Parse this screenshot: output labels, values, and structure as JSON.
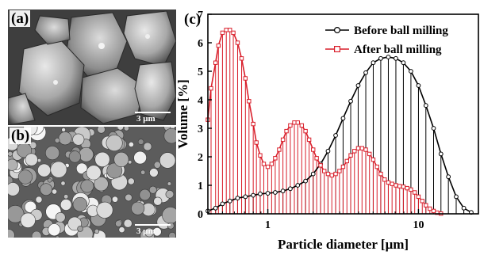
{
  "panels": {
    "a": {
      "label": "(a)",
      "scale_bar": "3 μm"
    },
    "b": {
      "label": "(b)",
      "scale_bar": "3 μm"
    }
  },
  "chart_data": {
    "type": "line",
    "panel_label": "(c)",
    "xlabel": "Particle diameter [μm]",
    "ylabel": "Volume [%]",
    "xscale": "log",
    "xlim": [
      0.4,
      25
    ],
    "ylim": [
      0,
      7
    ],
    "xticks": [
      1,
      10
    ],
    "yticks": [
      0,
      1,
      2,
      3,
      4,
      5,
      6,
      7
    ],
    "legend_position": "top-right",
    "series": [
      {
        "name": "Before ball milling",
        "color": "#000000",
        "marker": "circle",
        "x": [
          0.4,
          0.45,
          0.5,
          0.56,
          0.63,
          0.71,
          0.8,
          0.89,
          1.0,
          1.12,
          1.26,
          1.41,
          1.58,
          1.78,
          2.0,
          2.24,
          2.51,
          2.82,
          3.16,
          3.55,
          3.98,
          4.47,
          5.01,
          5.62,
          6.31,
          7.08,
          7.94,
          8.91,
          10.0,
          11.2,
          12.6,
          14.1,
          15.8,
          17.8,
          20.0,
          22.4
        ],
        "y": [
          0.1,
          0.2,
          0.35,
          0.45,
          0.55,
          0.6,
          0.65,
          0.7,
          0.72,
          0.75,
          0.8,
          0.88,
          1.0,
          1.15,
          1.4,
          1.75,
          2.2,
          2.75,
          3.35,
          3.95,
          4.5,
          4.95,
          5.3,
          5.45,
          5.5,
          5.45,
          5.3,
          5.0,
          4.5,
          3.8,
          3.0,
          2.1,
          1.3,
          0.6,
          0.2,
          0.05
        ]
      },
      {
        "name": "After ball milling",
        "color": "#d91e2a",
        "marker": "square",
        "x": [
          0.4,
          0.42,
          0.45,
          0.47,
          0.5,
          0.53,
          0.56,
          0.59,
          0.63,
          0.67,
          0.71,
          0.75,
          0.8,
          0.84,
          0.89,
          0.94,
          1.0,
          1.06,
          1.12,
          1.19,
          1.26,
          1.33,
          1.41,
          1.5,
          1.58,
          1.68,
          1.78,
          1.88,
          2.0,
          2.11,
          2.24,
          2.37,
          2.51,
          2.66,
          2.82,
          2.99,
          3.16,
          3.35,
          3.55,
          3.76,
          3.98,
          4.22,
          4.47,
          4.73,
          5.01,
          5.31,
          5.62,
          5.96,
          6.31,
          6.68,
          7.08,
          7.5,
          7.94,
          8.41,
          8.91,
          9.44,
          10.0,
          10.6,
          11.2,
          11.9,
          12.6,
          13.3,
          14.1
        ],
        "y": [
          3.3,
          4.4,
          5.3,
          5.9,
          6.35,
          6.45,
          6.45,
          6.35,
          6.0,
          5.45,
          4.75,
          3.95,
          3.15,
          2.5,
          2.05,
          1.75,
          1.65,
          1.75,
          1.95,
          2.25,
          2.6,
          2.9,
          3.1,
          3.2,
          3.2,
          3.1,
          2.9,
          2.6,
          2.25,
          1.95,
          1.7,
          1.5,
          1.4,
          1.35,
          1.4,
          1.5,
          1.65,
          1.85,
          2.05,
          2.2,
          2.3,
          2.3,
          2.25,
          2.1,
          1.9,
          1.65,
          1.4,
          1.2,
          1.1,
          1.05,
          1.0,
          0.97,
          0.95,
          0.9,
          0.85,
          0.75,
          0.6,
          0.45,
          0.3,
          0.18,
          0.1,
          0.04,
          0.01
        ]
      }
    ]
  }
}
